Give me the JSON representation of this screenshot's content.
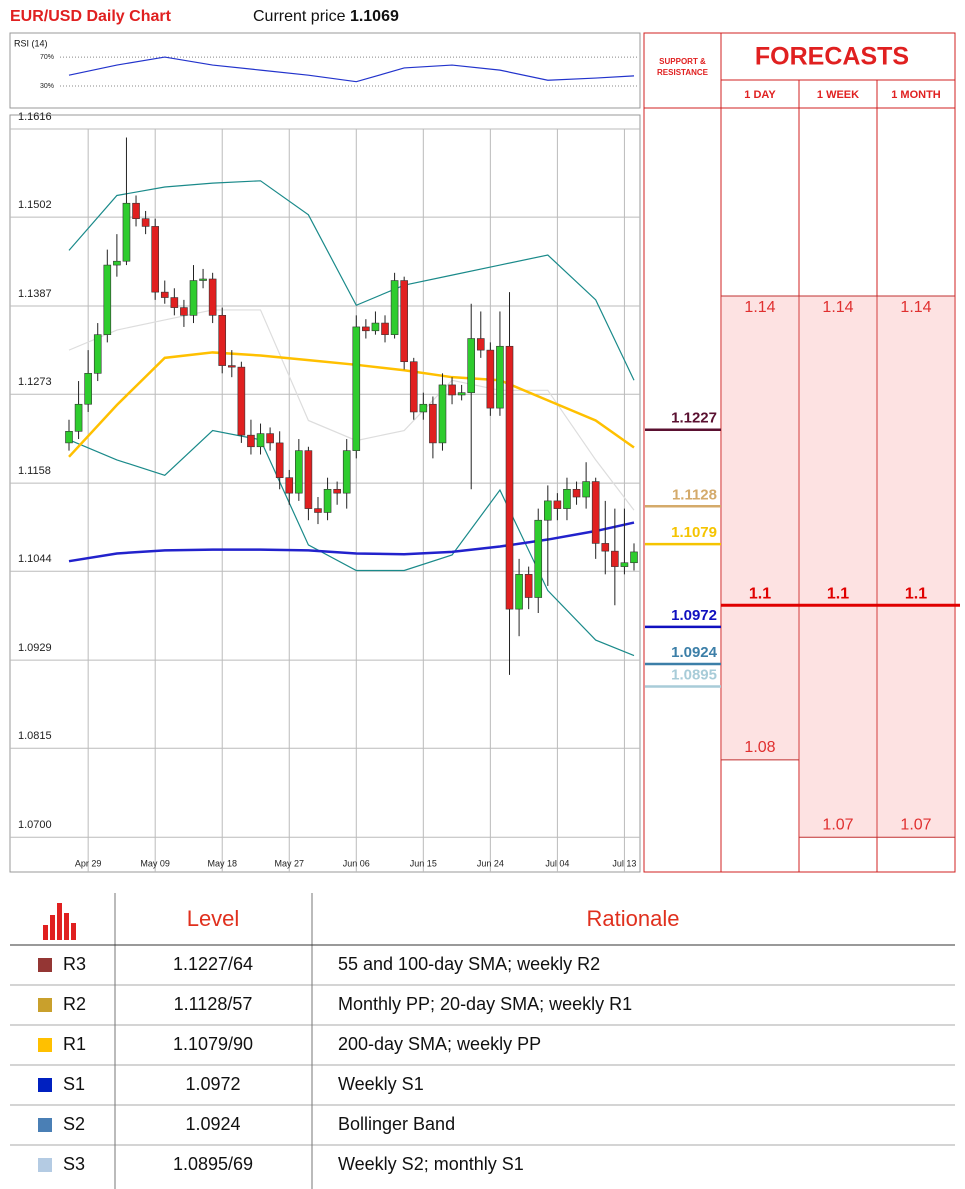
{
  "header": {
    "title": "EUR/USD Daily Chart",
    "price_label": "Current price",
    "price": "1.1069"
  },
  "chart_data": {
    "type": "candlestick",
    "categories": [
      null,
      null,
      "Apr 29",
      null,
      null,
      null,
      null,
      null,
      null,
      "May 09",
      null,
      null,
      null,
      null,
      null,
      null,
      "May 18",
      null,
      null,
      null,
      null,
      null,
      null,
      "May 27",
      null,
      null,
      null,
      null,
      null,
      null,
      "Jun 06",
      null,
      null,
      null,
      null,
      null,
      null,
      "Jun 15",
      null,
      null,
      null,
      null,
      null,
      null,
      "Jun 24",
      null,
      null,
      null,
      null,
      null,
      null,
      "Jul 04",
      null,
      null,
      null,
      null,
      null,
      null,
      "Jul 13",
      null
    ],
    "open": [
      1.121,
      1.1225,
      1.126,
      1.13,
      1.135,
      1.144,
      1.1445,
      1.152,
      1.15,
      1.149,
      1.1405,
      1.1398,
      1.1385,
      1.1375,
      1.142,
      1.1422,
      1.1375,
      1.131,
      1.1308,
      1.122,
      1.1205,
      1.1222,
      1.121,
      1.1165,
      1.1145,
      1.12,
      1.1125,
      1.112,
      1.115,
      1.1145,
      1.12,
      1.136,
      1.1355,
      1.1365,
      1.135,
      1.142,
      1.1315,
      1.125,
      1.126,
      1.121,
      1.1285,
      1.1272,
      1.1275,
      1.1345,
      1.133,
      1.1255,
      1.1335,
      1.0995,
      1.104,
      1.101,
      1.111,
      1.1135,
      1.1125,
      1.115,
      1.114,
      1.116,
      1.108,
      1.107,
      1.105,
      1.1055
    ],
    "high": [
      1.124,
      1.129,
      1.133,
      1.1365,
      1.146,
      1.148,
      1.1605,
      1.153,
      1.151,
      1.15,
      1.142,
      1.141,
      1.1395,
      1.144,
      1.1435,
      1.143,
      1.1385,
      1.133,
      1.1315,
      1.124,
      1.1235,
      1.123,
      1.1225,
      1.1175,
      1.1215,
      1.1205,
      1.114,
      1.1165,
      1.116,
      1.1215,
      1.1375,
      1.137,
      1.138,
      1.1375,
      1.143,
      1.1425,
      1.132,
      1.1275,
      1.127,
      1.13,
      1.1295,
      1.1285,
      1.139,
      1.138,
      1.134,
      1.138,
      1.1405,
      1.106,
      1.105,
      1.1125,
      1.1155,
      1.1145,
      1.1165,
      1.116,
      1.1185,
      1.1165,
      1.1135,
      1.1125,
      1.1125,
      1.108
    ],
    "low": [
      1.12,
      1.1215,
      1.125,
      1.129,
      1.134,
      1.1425,
      1.144,
      1.149,
      1.148,
      1.1395,
      1.139,
      1.1375,
      1.136,
      1.1365,
      1.141,
      1.1365,
      1.13,
      1.1295,
      1.121,
      1.1195,
      1.1195,
      1.12,
      1.115,
      1.113,
      1.1135,
      1.111,
      1.1105,
      1.111,
      1.113,
      1.1125,
      1.119,
      1.1345,
      1.135,
      1.134,
      1.1345,
      1.1305,
      1.124,
      1.124,
      1.119,
      1.12,
      1.126,
      1.1265,
      1.115,
      1.132,
      1.1245,
      1.1245,
      1.091,
      1.096,
      1.0995,
      1.099,
      1.1025,
      1.111,
      1.111,
      1.113,
      1.1125,
      1.106,
      1.104,
      1.1,
      1.104,
      1.1045
    ],
    "close": [
      1.1225,
      1.126,
      1.13,
      1.135,
      1.144,
      1.1445,
      1.152,
      1.15,
      1.149,
      1.1405,
      1.1398,
      1.1385,
      1.1375,
      1.142,
      1.1422,
      1.1375,
      1.131,
      1.1308,
      1.122,
      1.1205,
      1.1222,
      1.121,
      1.1165,
      1.1145,
      1.12,
      1.1125,
      1.112,
      1.115,
      1.1145,
      1.12,
      1.136,
      1.1355,
      1.1365,
      1.135,
      1.142,
      1.1315,
      1.125,
      1.126,
      1.121,
      1.1285,
      1.1272,
      1.1275,
      1.1345,
      1.133,
      1.1255,
      1.1335,
      1.0995,
      1.104,
      1.101,
      1.111,
      1.1135,
      1.1125,
      1.115,
      1.114,
      1.116,
      1.108,
      1.107,
      1.105,
      1.1055,
      1.1069
    ],
    "up_color": "#2ecc2e",
    "down_color": "#e02020",
    "ylim": [
      1.0655,
      1.1616
    ],
    "yticks": [
      1.1616,
      1.1502,
      1.1387,
      1.1273,
      1.1158,
      1.1044,
      1.0929,
      1.0815,
      {
        "value": 1.07,
        "label": "1.0700"
      }
    ],
    "grid": true,
    "overlay_x": [
      0,
      5,
      10,
      15,
      20,
      25,
      30,
      35,
      40,
      45,
      50,
      55,
      59
    ],
    "overlays": [
      {
        "color": "#dddddd",
        "values": [
          1.133,
          1.1356,
          1.1369,
          1.1382,
          1.1382,
          1.1239,
          1.1213,
          1.1226,
          1.1291,
          1.1278,
          1.1278,
          1.1188,
          1.1123
        ]
      },
      {
        "color": "#1a8a8a",
        "values": [
          1.1459,
          1.153,
          1.1541,
          1.1546,
          1.1549,
          1.1505,
          1.1388,
          1.1414,
          1.1427,
          1.144,
          1.1453,
          1.1395,
          1.1291
        ]
      },
      {
        "color": "#1a8a8a",
        "values": [
          1.1214,
          1.1188,
          1.1168,
          1.1226,
          1.1214,
          1.1078,
          1.1045,
          1.1045,
          1.1065,
          1.1149,
          1.1019,
          1.0955,
          1.0935
        ]
      },
      {
        "color": "#ffc000",
        "values": [
          1.1192,
          1.1259,
          1.132,
          1.1327,
          1.1323,
          1.1317,
          1.1311,
          1.1304,
          1.1295,
          1.1291,
          1.1265,
          1.1239,
          1.1204
        ]
      },
      {
        "color": "#2222cc",
        "values": [
          1.1057,
          1.1067,
          1.1071,
          1.1072,
          1.1072,
          1.1071,
          1.1067,
          1.1066,
          1.1069,
          1.1076,
          1.1085,
          1.1096,
          1.1107
        ]
      }
    ],
    "rsi": {
      "label": "RSI (14)",
      "color": "#2233cc",
      "ylim": [
        0,
        95
      ],
      "yticks": [
        {
          "value": 70,
          "label": "70%"
        },
        {
          "value": 30,
          "label": "30%"
        }
      ],
      "values": [
        45,
        59,
        70,
        59,
        52,
        45,
        36,
        55,
        59,
        52,
        38,
        41,
        44
      ]
    },
    "support_resistance": {
      "label": "SUPPORT & RESISTANCE",
      "levels": [
        {
          "value": 1.1227,
          "color": "#5a1030"
        },
        {
          "value": 1.1128,
          "color": "#d4aa6a"
        },
        {
          "value": 1.1079,
          "color": "#f5c400"
        },
        {
          "value": 1.0972,
          "color": "#1010c0"
        },
        {
          "value": 1.0924,
          "color": "#3c7fa8"
        },
        {
          "value": 1.0895,
          "color": "#a8ccd8"
        }
      ]
    },
    "forecasts": {
      "title": "FORECASTS",
      "color": "#e02020",
      "columns": [
        {
          "label": "1 DAY",
          "values": [
            1.14,
            1.1,
            1.08
          ]
        },
        {
          "label": "1 WEEK",
          "values": [
            1.14,
            1.1,
            1.07
          ]
        },
        {
          "label": "1 MONTH",
          "values": [
            1.14,
            1.1,
            1.07
          ]
        }
      ]
    }
  },
  "levels_table": {
    "headers": [
      "Level",
      "Rationale"
    ],
    "rows": [
      {
        "color": "#943634",
        "name": "R3",
        "level": "1.1227/64",
        "rationale": "55 and 100-day SMA; weekly R2"
      },
      {
        "color": "#c9a02c",
        "name": "R2",
        "level": "1.1128/57",
        "rationale": "Monthly PP; 20-day SMA; weekly R1"
      },
      {
        "color": "#ffc000",
        "name": "R1",
        "level": "1.1079/90",
        "rationale": "200-day SMA; weekly PP"
      },
      {
        "color": "#0020c0",
        "name": "S1",
        "level": "1.0972",
        "rationale": "Weekly S1"
      },
      {
        "color": "#4a7fb5",
        "name": "S2",
        "level": "1.0924",
        "rationale": "Bollinger Band"
      },
      {
        "color": "#b4cbe3",
        "name": "S3",
        "level": "1.0895/69",
        "rationale": "Weekly S2; monthly S1"
      }
    ]
  }
}
